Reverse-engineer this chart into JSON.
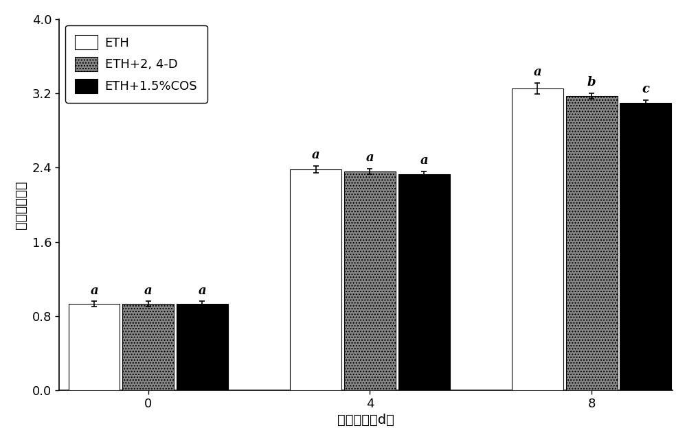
{
  "groups": [
    "0",
    "4",
    "8"
  ],
  "series": [
    "ETH",
    "ETH+2, 4-D",
    "ETH+1.5%COS"
  ],
  "values": [
    [
      0.93,
      0.93,
      0.93
    ],
    [
      2.38,
      2.36,
      2.33
    ],
    [
      3.25,
      3.17,
      3.1
    ]
  ],
  "errors": [
    [
      0.03,
      0.03,
      0.03
    ],
    [
      0.04,
      0.03,
      0.03
    ],
    [
      0.06,
      0.03,
      0.03
    ]
  ],
  "sig_labels": [
    [
      "a",
      "a",
      "a"
    ],
    [
      "a",
      "a",
      "a"
    ],
    [
      "a",
      "b",
      "c"
    ]
  ],
  "bar_colors": [
    "white",
    "#888888",
    "black"
  ],
  "bar_hatches": [
    null,
    "....",
    null
  ],
  "bar_edgecolors": [
    "black",
    "black",
    "black"
  ],
  "ylabel": "果蒂度变指数",
  "xlabel": "贮藏时间（d）",
  "ylim": [
    0.0,
    4.0
  ],
  "yticks": [
    0.0,
    0.8,
    1.6,
    2.4,
    3.2,
    4.0
  ],
  "bar_width": 0.2,
  "legend_labels": [
    "ETH",
    "ETH+2，4-D",
    "ETH+1.5%COS"
  ],
  "axis_fontsize": 14,
  "tick_fontsize": 13,
  "legend_fontsize": 13,
  "sig_fontsize": 13,
  "background_color": "white",
  "group_centers": [
    0.28,
    1.1,
    1.92
  ]
}
